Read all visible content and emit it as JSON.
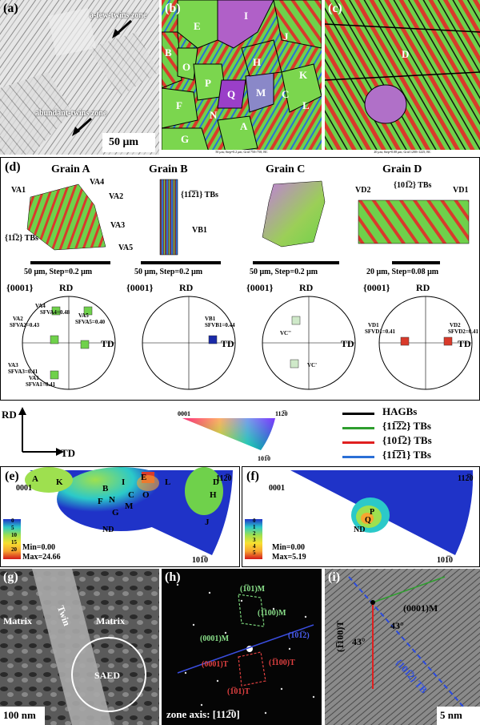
{
  "panel_labels": {
    "a": "(a)",
    "b": "(b)",
    "c": "(c)",
    "d": "(d)",
    "e": "(e)",
    "f": "(f)",
    "g": "(g)",
    "h": "(h)",
    "i": "(i)"
  },
  "panel_a": {
    "annotation_top": "a-few-twins zone",
    "annotation_bottom": "abundant-twins zone",
    "scalebar": "50 μm"
  },
  "panel_b": {
    "grains": [
      "E",
      "I",
      "J",
      "B",
      "O",
      "H",
      "K",
      "P",
      "Q",
      "M",
      "C",
      "F",
      "L",
      "N",
      "A",
      "G"
    ],
    "footer": "50 μm; Step=0.2 μm; Grid 750×750; BC"
  },
  "panel_c": {
    "grains": [
      "D"
    ],
    "footer": "20 μm; Step=0.08 μm; Grid 1200×1225; BC"
  },
  "panel_d": {
    "grains": [
      {
        "title": "Grain A",
        "scalebar": "50 μm, Step=0.2 μm",
        "labels": [
          "VA1",
          "VA4",
          "VA2",
          "VA3",
          "VA5",
          "{11̅2} TBs"
        ]
      },
      {
        "title": "Grain B",
        "scalebar": "50 μm, Step=0.2 μm",
        "labels": [
          "{11̅2̅1} TBs",
          "VB1"
        ]
      },
      {
        "title": "Grain C",
        "scalebar": "50 μm, Step=0.2 μm",
        "labels": []
      },
      {
        "title": "Grain D",
        "scalebar": "20 μm, Step=0.08 μm",
        "labels": [
          "VD2",
          "{101̅2} TBs",
          "VD1"
        ]
      }
    ],
    "pole_figures": [
      {
        "family": "{0001}",
        "rd": "RD",
        "td": "TD",
        "labels": [
          "VA4",
          "SFVA4=0.48",
          "VA5",
          "SFVA5=0.40",
          "VA2",
          "SFVA2=0.43",
          "VA3",
          "SFVA3=0.41",
          "VA1",
          "SFVA1=0.41"
        ]
      },
      {
        "family": "{0001}",
        "rd": "RD",
        "td": "TD",
        "labels": [
          "VB1",
          "SFVB1=0.44"
        ]
      },
      {
        "family": "{0001}",
        "rd": "RD",
        "td": "TD",
        "labels": [
          "VC''",
          "VC'"
        ]
      },
      {
        "family": "{0001}",
        "rd": "RD",
        "td": "TD",
        "labels": [
          "VD1",
          "SFVD1=0.41",
          "VD2",
          "SFVD2=0.41"
        ]
      }
    ]
  },
  "legend": {
    "axis_rd": "RD",
    "axis_td": "TD",
    "ipf_0001": "0001",
    "ipf_11_20": "112̅0",
    "ipf_10_10": "101̅0",
    "boundaries": [
      {
        "label": "HAGBs",
        "color": "#000000"
      },
      {
        "label": "{11̅2̅2} TBs",
        "color": "#2e9e2e"
      },
      {
        "label": "{101̅2} TBs",
        "color": "#e02020"
      },
      {
        "label": "{11̅2̅1} TBs",
        "color": "#2a6fd6"
      }
    ]
  },
  "panel_e": {
    "corner_0001": "0001",
    "corner_11_20": "112̅0",
    "corner_10_10": "101̅0",
    "nd": "ND",
    "points": [
      "A",
      "K",
      "B",
      "I",
      "E",
      "L",
      "D",
      "H",
      "C",
      "O",
      "F",
      "M",
      "G",
      "N",
      "J"
    ],
    "scale_ticks": [
      "0",
      "5",
      "10",
      "15",
      "20"
    ],
    "min": "Min=0.00",
    "max": "Max=24.66"
  },
  "panel_f": {
    "corner_0001": "0001",
    "corner_11_20": "112̅0",
    "corner_10_10": "101̅0",
    "nd": "ND",
    "points": [
      "P",
      "Q"
    ],
    "scale_ticks": [
      "0",
      "1",
      "2",
      "3",
      "4",
      "5"
    ],
    "min": "Min=0.00",
    "max": "Max=5.19"
  },
  "panel_g": {
    "matrix_left": "Matrix",
    "twin": "Twin",
    "matrix_right": "Matrix",
    "saed": "SAED",
    "scalebar": "100 nm"
  },
  "panel_h": {
    "spots_m": [
      "(1̅01)M",
      "(1̅100)M",
      "(0001)M"
    ],
    "spots_t": [
      "(0001)T",
      "(1̅100)T",
      "(1̅01)T"
    ],
    "plane": "(101̅2)",
    "zone_axis": "zone axis: [112̅0]"
  },
  "panel_i": {
    "plane_m": "(0001)M",
    "angle_1": "43°",
    "angle_2": "43°",
    "plane_t": "(1̅100)T",
    "tb": "{101̅2} TB",
    "scalebar": "5 nm"
  },
  "colors": {
    "green": "#6fd14b",
    "red": "#d93a2b",
    "blue": "#2a6fd6",
    "purple": "#8a55c8",
    "ipf_low": "#1f33c8",
    "ipf_high": "#d21a1a"
  }
}
